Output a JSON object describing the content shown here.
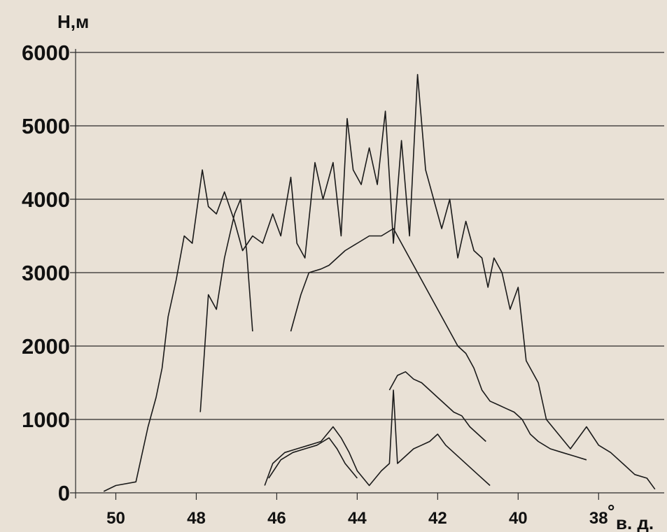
{
  "chart_data": {
    "type": "line",
    "ylabel": "Н,м",
    "xlabel": "в. д.",
    "degree_symbol": "°",
    "y_ticks": [
      "0",
      "1000",
      "2000",
      "3000",
      "4000",
      "5000",
      "6000"
    ],
    "x_ticks": [
      "50",
      "48",
      "46",
      "44",
      "42",
      "40",
      "38"
    ],
    "xlim": [
      51.0,
      36.3
    ],
    "ylim": [
      0,
      6000
    ],
    "x_reversed": true,
    "grid": "horizontal",
    "line_color": "#1a1a1a",
    "series": [
      {
        "points": [
          [
            50.3,
            20
          ],
          [
            50.0,
            100
          ],
          [
            49.5,
            150
          ],
          [
            49.2,
            900
          ],
          [
            49.0,
            1300
          ],
          [
            48.85,
            1700
          ],
          [
            48.7,
            2400
          ],
          [
            48.5,
            2900
          ],
          [
            48.3,
            3500
          ],
          [
            48.1,
            3400
          ],
          [
            47.85,
            4400
          ],
          [
            47.7,
            3900
          ],
          [
            47.5,
            3800
          ],
          [
            47.3,
            4100
          ],
          [
            47.05,
            3700
          ],
          [
            46.85,
            3300
          ],
          [
            46.6,
            3500
          ],
          [
            46.35,
            3400
          ],
          [
            46.1,
            3800
          ],
          [
            45.9,
            3500
          ],
          [
            45.65,
            4300
          ],
          [
            45.5,
            3400
          ],
          [
            45.3,
            3200
          ],
          [
            45.05,
            4500
          ],
          [
            44.85,
            4000
          ],
          [
            44.6,
            4500
          ],
          [
            44.4,
            3500
          ],
          [
            44.25,
            5100
          ],
          [
            44.1,
            4400
          ],
          [
            43.9,
            4200
          ],
          [
            43.7,
            4700
          ],
          [
            43.5,
            4200
          ],
          [
            43.3,
            5200
          ],
          [
            43.1,
            3400
          ],
          [
            42.9,
            4800
          ],
          [
            42.7,
            3500
          ],
          [
            42.5,
            5700
          ],
          [
            42.3,
            4400
          ],
          [
            42.1,
            4000
          ],
          [
            41.9,
            3600
          ],
          [
            41.7,
            4000
          ],
          [
            41.5,
            3200
          ],
          [
            41.3,
            3700
          ],
          [
            41.1,
            3300
          ],
          [
            40.9,
            3200
          ],
          [
            40.75,
            2800
          ],
          [
            40.6,
            3200
          ],
          [
            40.4,
            3000
          ],
          [
            40.2,
            2500
          ],
          [
            40.0,
            2800
          ],
          [
            39.8,
            1800
          ],
          [
            39.5,
            1500
          ],
          [
            39.3,
            1000
          ],
          [
            39.0,
            800
          ],
          [
            38.7,
            600
          ],
          [
            38.3,
            900
          ],
          [
            38.0,
            650
          ],
          [
            37.7,
            550
          ],
          [
            37.4,
            400
          ],
          [
            37.1,
            250
          ],
          [
            36.8,
            200
          ],
          [
            36.6,
            50
          ]
        ]
      },
      {
        "points": [
          [
            47.9,
            1100
          ],
          [
            47.7,
            2700
          ],
          [
            47.5,
            2500
          ],
          [
            47.3,
            3200
          ],
          [
            47.05,
            3800
          ],
          [
            46.9,
            4000
          ],
          [
            46.75,
            3300
          ],
          [
            46.6,
            2200
          ]
        ]
      },
      {
        "points": [
          [
            45.65,
            2200
          ],
          [
            45.4,
            2700
          ],
          [
            45.2,
            3000
          ],
          [
            44.9,
            3050
          ],
          [
            44.7,
            3100
          ],
          [
            44.5,
            3200
          ],
          [
            44.3,
            3300
          ],
          [
            44.0,
            3400
          ],
          [
            43.7,
            3500
          ],
          [
            43.4,
            3500
          ],
          [
            43.1,
            3600
          ],
          [
            42.9,
            3400
          ],
          [
            42.7,
            3200
          ],
          [
            42.5,
            3000
          ],
          [
            42.3,
            2800
          ],
          [
            42.1,
            2600
          ],
          [
            41.9,
            2400
          ],
          [
            41.7,
            2200
          ],
          [
            41.5,
            2000
          ],
          [
            41.3,
            1900
          ],
          [
            41.1,
            1700
          ],
          [
            40.9,
            1400
          ],
          [
            40.7,
            1250
          ],
          [
            40.5,
            1200
          ],
          [
            40.3,
            1150
          ],
          [
            40.1,
            1100
          ],
          [
            39.9,
            1000
          ],
          [
            39.7,
            800
          ],
          [
            39.5,
            700
          ],
          [
            39.2,
            600
          ],
          [
            38.9,
            550
          ],
          [
            38.6,
            500
          ],
          [
            38.3,
            450
          ]
        ]
      },
      {
        "points": [
          [
            43.2,
            1400
          ],
          [
            43.0,
            1600
          ],
          [
            42.8,
            1650
          ],
          [
            42.6,
            1550
          ],
          [
            42.4,
            1500
          ],
          [
            42.2,
            1400
          ],
          [
            42.0,
            1300
          ],
          [
            41.8,
            1200
          ],
          [
            41.6,
            1100
          ],
          [
            41.4,
            1050
          ],
          [
            41.2,
            900
          ],
          [
            41.0,
            800
          ],
          [
            40.8,
            700
          ]
        ]
      },
      {
        "points": [
          [
            46.3,
            100
          ],
          [
            46.1,
            400
          ],
          [
            45.8,
            550
          ],
          [
            45.5,
            600
          ],
          [
            45.2,
            650
          ],
          [
            44.9,
            700
          ],
          [
            44.6,
            900
          ],
          [
            44.4,
            750
          ],
          [
            44.2,
            550
          ],
          [
            44.0,
            300
          ],
          [
            43.7,
            100
          ],
          [
            43.4,
            300
          ],
          [
            43.2,
            400
          ],
          [
            43.1,
            1400
          ],
          [
            43.0,
            400
          ],
          [
            42.8,
            500
          ],
          [
            42.6,
            600
          ],
          [
            42.4,
            650
          ],
          [
            42.2,
            700
          ],
          [
            42.0,
            800
          ],
          [
            41.8,
            650
          ],
          [
            41.6,
            550
          ],
          [
            41.4,
            450
          ],
          [
            41.2,
            350
          ],
          [
            41.0,
            250
          ],
          [
            40.7,
            100
          ]
        ]
      },
      {
        "points": [
          [
            46.2,
            200
          ],
          [
            45.9,
            450
          ],
          [
            45.6,
            550
          ],
          [
            45.3,
            600
          ],
          [
            45.0,
            650
          ],
          [
            44.7,
            750
          ],
          [
            44.5,
            600
          ],
          [
            44.3,
            400
          ],
          [
            44.0,
            200
          ]
        ]
      }
    ]
  }
}
